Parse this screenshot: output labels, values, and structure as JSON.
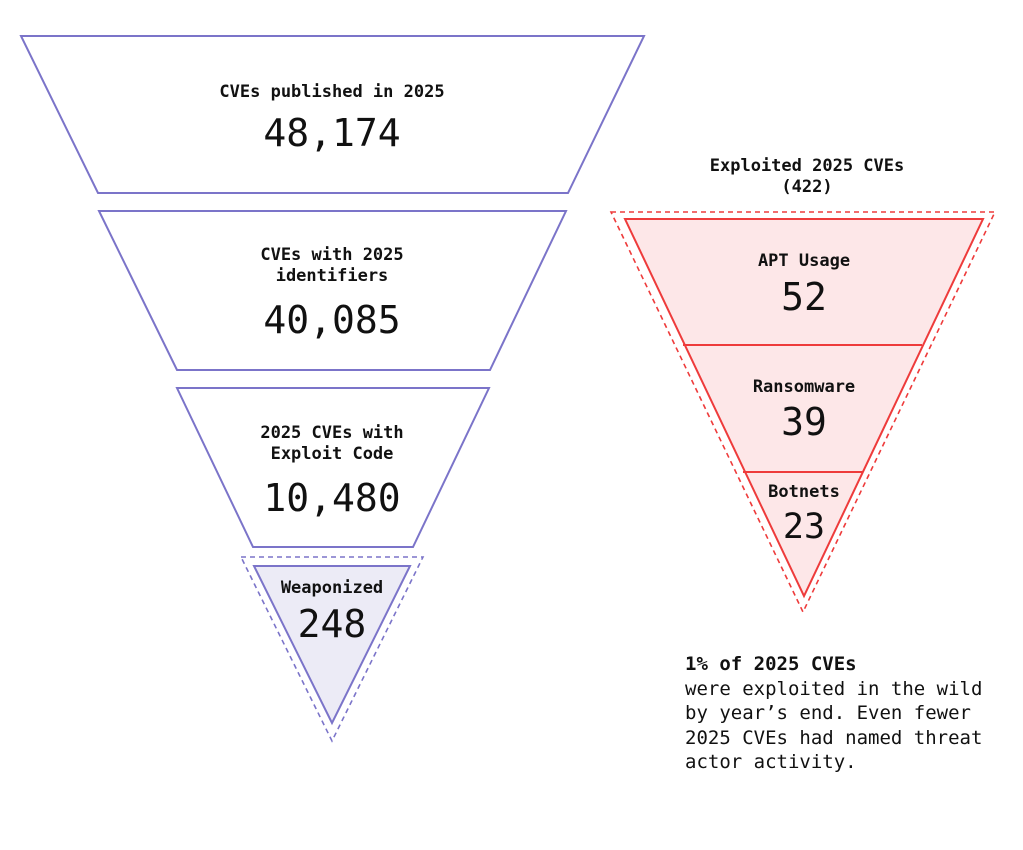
{
  "colors": {
    "left_stroke": "#7b74c9",
    "weaponized_fill": "#ecebf6",
    "right_stroke": "#ee3b3b",
    "right_fill": "#fde7e8",
    "text": "#111111"
  },
  "left_funnel": {
    "stages": [
      {
        "label_lines": [
          "CVEs published in 2025"
        ],
        "value": "48,174"
      },
      {
        "label_lines": [
          "CVEs with 2025",
          "identifiers"
        ],
        "value": "40,085"
      },
      {
        "label_lines": [
          "2025 CVEs with",
          "Exploit Code"
        ],
        "value": "10,480"
      }
    ],
    "tip": {
      "label": "Weaponized",
      "value": "248"
    }
  },
  "right_funnel": {
    "title_lines": [
      "Exploited 2025 CVEs",
      "(422)"
    ],
    "segments": [
      {
        "label": "APT Usage",
        "value": "52"
      },
      {
        "label": "Ransomware",
        "value": "39"
      },
      {
        "label": "Botnets",
        "value": "23"
      }
    ]
  },
  "note": {
    "bold": "1% of 2025 CVEs",
    "body": "were exploited in the wild by year’s end. Even fewer 2025 CVEs had named threat actor activity."
  }
}
